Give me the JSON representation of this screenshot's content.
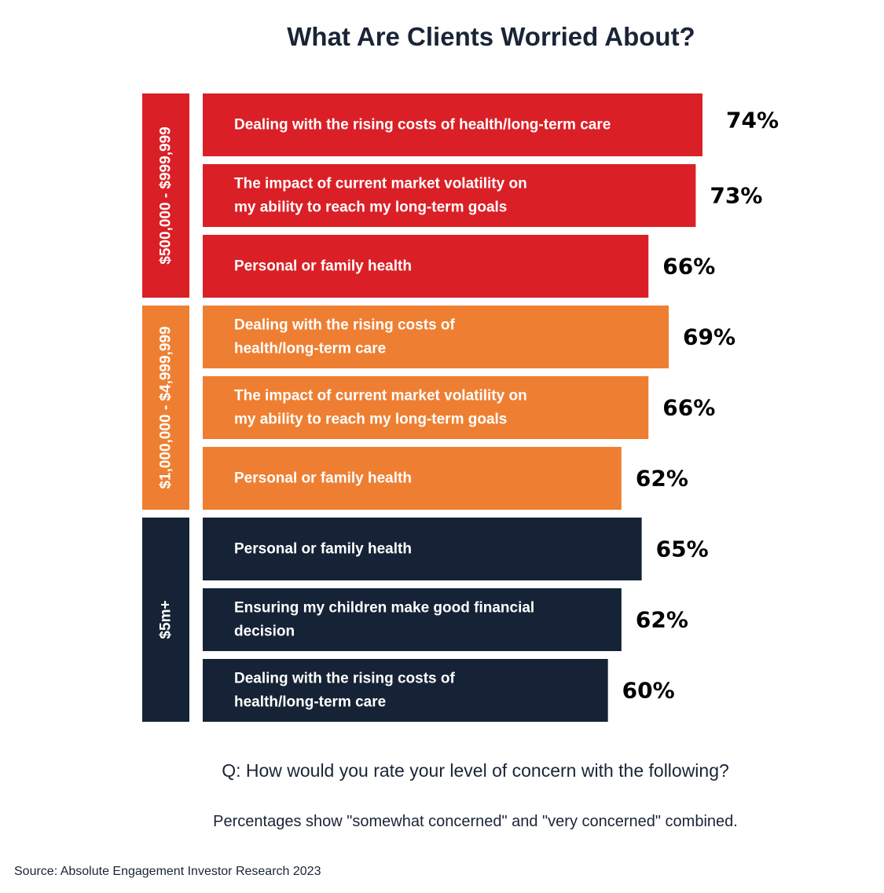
{
  "chart_data": {
    "type": "bar",
    "orientation": "horizontal",
    "title": "What Are Clients Worried About?",
    "question": "Q: How would you rate your level of concern with the following?",
    "note": "Percentages show \"somewhat concerned\" and \"very concerned\" combined.",
    "source": "Source: Absolute Engagement Investor Research 2023",
    "groups": [
      {
        "name": "$500,000 - $999,999",
        "color": "#da2026",
        "items": [
          {
            "label_lines": [
              "Dealing with the rising costs of health/long-term care"
            ],
            "value": 74,
            "value_label": "74%"
          },
          {
            "label_lines": [
              "The impact of current market volatility on",
              "my ability to reach my long-term goals"
            ],
            "value": 73,
            "value_label": "73%"
          },
          {
            "label_lines": [
              "Personal or family health"
            ],
            "value": 66,
            "value_label": "66%"
          }
        ]
      },
      {
        "name": "$1,000,000 - $4,999,999",
        "color": "#ee7f32",
        "items": [
          {
            "label_lines": [
              "Dealing with the rising costs of",
              "health/long-term care"
            ],
            "value": 69,
            "value_label": "69%"
          },
          {
            "label_lines": [
              "The impact of current market volatility on",
              "my ability to reach my long-term goals"
            ],
            "value": 66,
            "value_label": "66%"
          },
          {
            "label_lines": [
              "Personal or family health"
            ],
            "value": 62,
            "value_label": "62%"
          }
        ]
      },
      {
        "name": "$5m+",
        "color": "#162336",
        "items": [
          {
            "label_lines": [
              "Personal or family health"
            ],
            "value": 65,
            "value_label": "65%"
          },
          {
            "label_lines": [
              "Ensuring my children make good financial",
              "decision"
            ],
            "value": 62,
            "value_label": "62%"
          },
          {
            "label_lines": [
              "Dealing with the rising costs of",
              "health/long-term care"
            ],
            "value": 60,
            "value_label": "60%"
          }
        ]
      }
    ]
  }
}
